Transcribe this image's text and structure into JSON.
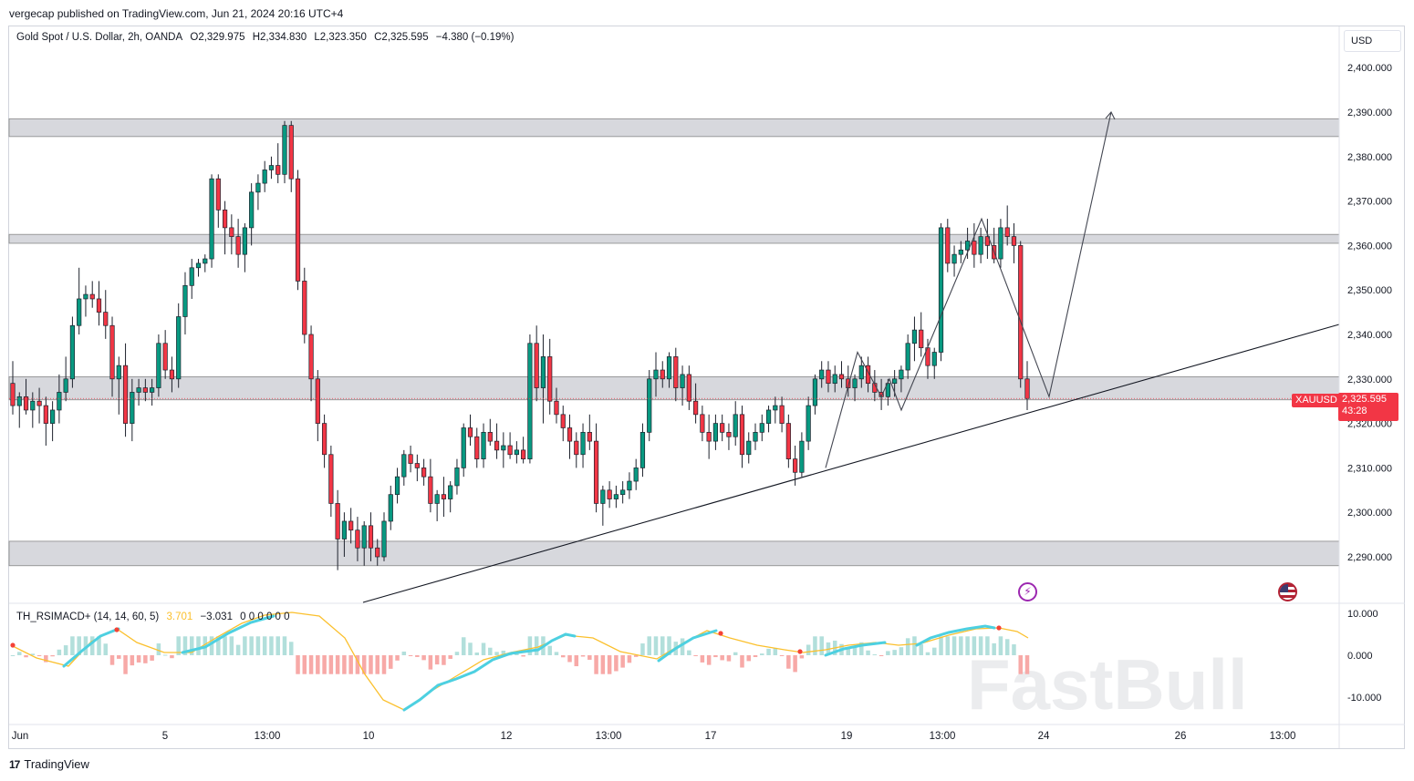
{
  "publisher": "vergecap published on TradingView.com, Jun 21, 2024 20:16 UTC+4",
  "legend": {
    "symbol": "Gold Spot / U.S. Dollar, 2h, OANDA",
    "open": "O2,329.975",
    "high": "H2,334.830",
    "low": "L2,323.350",
    "close": "C2,325.595",
    "change": "−4.380 (−0.19%)"
  },
  "currency": "USD",
  "price_tag": {
    "ticker": "XAUUSD",
    "price": "2,325.595",
    "countdown": "43:28"
  },
  "indicator_legend": {
    "name": "TH_RSIMACD+ (14, 14, 60, 5)",
    "v1": "3.701",
    "v2": "−3.031",
    "rest": "0 0 0 0 0 0"
  },
  "watermark": "FastBull",
  "footer": "TradingView",
  "colors": {
    "up": "#089981",
    "down": "#f23645",
    "zone": "#c9cbd1",
    "macd_line": "#4dd0e1",
    "signal_line": "#fbc02d"
  },
  "icons": [
    "flash-icon",
    "us-flag-icon",
    "tradingview-logo-icon"
  ],
  "chart_data": {
    "type": "candlestick",
    "title": "Gold Spot / U.S. Dollar, 2h, OANDA",
    "yaxis": {
      "ticks": [
        2290,
        2300,
        2310,
        2320,
        2330,
        2340,
        2350,
        2360,
        2370,
        2380,
        2390,
        2400
      ],
      "tick_labels": [
        "2,290.000",
        "2,300.000",
        "2,310.000",
        "2,320.000",
        "2,330.000",
        "2,340.000",
        "2,350.000",
        "2,360.000",
        "2,370.000",
        "2,380.000",
        "2,390.000",
        "2,400.000"
      ],
      "range": [
        2281.5,
        2412
      ]
    },
    "xaxis": {
      "tick_labels": [
        "Jun",
        "5",
        "13:00",
        "10",
        "12",
        "13:00",
        "17",
        "19",
        "13:00",
        "24",
        "26",
        "13:00"
      ]
    },
    "zones": [
      {
        "low": 2384.5,
        "high": 2388.5
      },
      {
        "low": 2360.5,
        "high": 2362.5
      },
      {
        "low": 2325.3,
        "high": 2330.5
      },
      {
        "low": 2288.0,
        "high": 2293.5
      }
    ],
    "candles": [
      [
        2329,
        2334,
        2322,
        2324
      ],
      [
        2324,
        2327,
        2319,
        2326
      ],
      [
        2326,
        2330,
        2322,
        2323
      ],
      [
        2323,
        2327,
        2319,
        2325
      ],
      [
        2325,
        2328,
        2320,
        2324
      ],
      [
        2324,
        2326,
        2315,
        2320
      ],
      [
        2320,
        2325,
        2316,
        2323
      ],
      [
        2323,
        2331,
        2320,
        2327
      ],
      [
        2327,
        2335,
        2325,
        2330
      ],
      [
        2330,
        2344,
        2328,
        2342
      ],
      [
        2342,
        2355,
        2340,
        2348
      ],
      [
        2348,
        2351,
        2344,
        2349
      ],
      [
        2349,
        2352,
        2346,
        2348
      ],
      [
        2348,
        2352,
        2342,
        2345
      ],
      [
        2345,
        2350,
        2339,
        2342
      ],
      [
        2342,
        2344,
        2326,
        2330
      ],
      [
        2330,
        2335,
        2322,
        2333
      ],
      [
        2333,
        2338,
        2317,
        2320
      ],
      [
        2320,
        2330,
        2316,
        2327
      ],
      [
        2327,
        2330,
        2324,
        2328
      ],
      [
        2328,
        2330,
        2325,
        2327
      ],
      [
        2327,
        2330,
        2324,
        2328
      ],
      [
        2328,
        2340,
        2326,
        2338
      ],
      [
        2338,
        2341,
        2330,
        2332
      ],
      [
        2332,
        2335,
        2327,
        2330
      ],
      [
        2330,
        2347,
        2328,
        2344
      ],
      [
        2344,
        2354,
        2340,
        2351
      ],
      [
        2351,
        2357,
        2348,
        2355
      ],
      [
        2355,
        2357,
        2353,
        2356
      ],
      [
        2356,
        2358,
        2354,
        2357
      ],
      [
        2357,
        2376,
        2355,
        2375
      ],
      [
        2375,
        2376,
        2364,
        2368
      ],
      [
        2368,
        2370,
        2358,
        2364
      ],
      [
        2364,
        2367,
        2358,
        2362
      ],
      [
        2362,
        2366,
        2355,
        2358
      ],
      [
        2358,
        2365,
        2354,
        2364
      ],
      [
        2364,
        2374,
        2360,
        2372
      ],
      [
        2372,
        2376,
        2368,
        2374
      ],
      [
        2374,
        2379,
        2372,
        2377
      ],
      [
        2377,
        2380,
        2375,
        2378
      ],
      [
        2378,
        2383,
        2374,
        2376
      ],
      [
        2376,
        2388,
        2374,
        2387
      ],
      [
        2387,
        2388,
        2372,
        2375
      ],
      [
        2375,
        2377,
        2350,
        2352
      ],
      [
        2352,
        2355,
        2338,
        2340
      ],
      [
        2340,
        2342,
        2325,
        2330
      ],
      [
        2330,
        2332,
        2316,
        2320
      ],
      [
        2320,
        2322,
        2310,
        2313
      ],
      [
        2313,
        2315,
        2299,
        2302
      ],
      [
        2302,
        2305,
        2287,
        2294
      ],
      [
        2294,
        2300,
        2290,
        2298
      ],
      [
        2298,
        2301,
        2293,
        2296
      ],
      [
        2296,
        2299,
        2289,
        2292
      ],
      [
        2292,
        2298,
        2288,
        2297
      ],
      [
        2297,
        2300,
        2289,
        2292
      ],
      [
        2292,
        2294,
        2288,
        2290
      ],
      [
        2290,
        2300,
        2289,
        2298
      ],
      [
        2298,
        2306,
        2296,
        2304
      ],
      [
        2304,
        2310,
        2302,
        2308
      ],
      [
        2308,
        2314,
        2306,
        2313
      ],
      [
        2313,
        2315,
        2309,
        2311
      ],
      [
        2311,
        2313,
        2307,
        2310
      ],
      [
        2310,
        2312,
        2306,
        2308
      ],
      [
        2308,
        2312,
        2300,
        2302
      ],
      [
        2302,
        2305,
        2298,
        2304
      ],
      [
        2304,
        2308,
        2299,
        2303
      ],
      [
        2303,
        2307,
        2300,
        2306
      ],
      [
        2306,
        2312,
        2304,
        2310
      ],
      [
        2310,
        2320,
        2308,
        2319
      ],
      [
        2319,
        2322,
        2315,
        2317
      ],
      [
        2317,
        2319,
        2310,
        2312
      ],
      [
        2312,
        2320,
        2310,
        2318
      ],
      [
        2318,
        2321,
        2315,
        2316
      ],
      [
        2316,
        2320,
        2312,
        2314
      ],
      [
        2314,
        2318,
        2310,
        2315
      ],
      [
        2315,
        2318,
        2312,
        2313
      ],
      [
        2313,
        2316,
        2311,
        2314
      ],
      [
        2314,
        2317,
        2311,
        2312
      ],
      [
        2312,
        2340,
        2311,
        2338
      ],
      [
        2338,
        2342,
        2325,
        2328
      ],
      [
        2328,
        2340,
        2320,
        2335
      ],
      [
        2335,
        2339,
        2322,
        2325
      ],
      [
        2325,
        2328,
        2320,
        2322
      ],
      [
        2322,
        2324,
        2316,
        2319
      ],
      [
        2319,
        2322,
        2312,
        2316
      ],
      [
        2316,
        2318,
        2310,
        2313
      ],
      [
        2313,
        2320,
        2310,
        2318
      ],
      [
        2318,
        2322,
        2314,
        2316
      ],
      [
        2316,
        2320,
        2300,
        2302
      ],
      [
        2302,
        2306,
        2297,
        2305
      ],
      [
        2305,
        2307,
        2301,
        2303
      ],
      [
        2303,
        2306,
        2301,
        2304
      ],
      [
        2304,
        2307,
        2302,
        2305
      ],
      [
        2305,
        2309,
        2303,
        2307
      ],
      [
        2307,
        2312,
        2305,
        2310
      ],
      [
        2310,
        2320,
        2308,
        2318
      ],
      [
        2318,
        2332,
        2316,
        2330
      ],
      [
        2330,
        2336,
        2326,
        2332
      ],
      [
        2332,
        2334,
        2328,
        2330
      ],
      [
        2330,
        2336,
        2328,
        2335
      ],
      [
        2335,
        2337,
        2325,
        2328
      ],
      [
        2328,
        2333,
        2324,
        2331
      ],
      [
        2331,
        2333,
        2323,
        2325
      ],
      [
        2325,
        2329,
        2320,
        2322
      ],
      [
        2322,
        2324,
        2316,
        2318
      ],
      [
        2318,
        2322,
        2312,
        2316
      ],
      [
        2316,
        2322,
        2314,
        2320
      ],
      [
        2320,
        2322,
        2316,
        2318
      ],
      [
        2318,
        2320,
        2314,
        2317
      ],
      [
        2317,
        2325,
        2315,
        2322
      ],
      [
        2322,
        2324,
        2310,
        2313
      ],
      [
        2313,
        2318,
        2311,
        2316
      ],
      [
        2316,
        2320,
        2314,
        2318
      ],
      [
        2318,
        2322,
        2316,
        2320
      ],
      [
        2320,
        2324,
        2318,
        2323
      ],
      [
        2323,
        2326,
        2320,
        2324
      ],
      [
        2324,
        2326,
        2318,
        2320
      ],
      [
        2320,
        2322,
        2310,
        2312
      ],
      [
        2312,
        2315,
        2306,
        2309
      ],
      [
        2309,
        2318,
        2308,
        2316
      ],
      [
        2316,
        2326,
        2314,
        2324
      ],
      [
        2324,
        2331,
        2322,
        2330
      ],
      [
        2330,
        2334,
        2328,
        2332
      ],
      [
        2332,
        2334,
        2327,
        2329
      ],
      [
        2329,
        2333,
        2327,
        2331
      ],
      [
        2331,
        2334,
        2328,
        2330
      ],
      [
        2330,
        2333,
        2326,
        2328
      ],
      [
        2328,
        2331,
        2325,
        2330
      ],
      [
        2330,
        2335,
        2328,
        2333
      ],
      [
        2333,
        2335,
        2327,
        2329
      ],
      [
        2329,
        2332,
        2325,
        2327
      ],
      [
        2327,
        2330,
        2323,
        2326
      ],
      [
        2326,
        2330,
        2324,
        2329
      ],
      [
        2329,
        2332,
        2326,
        2330
      ],
      [
        2330,
        2333,
        2327,
        2332
      ],
      [
        2332,
        2340,
        2330,
        2338
      ],
      [
        2338,
        2344,
        2334,
        2341
      ],
      [
        2341,
        2345,
        2335,
        2337
      ],
      [
        2337,
        2339,
        2330,
        2333
      ],
      [
        2333,
        2337,
        2330,
        2336
      ],
      [
        2336,
        2365,
        2334,
        2364
      ],
      [
        2364,
        2366,
        2354,
        2356
      ],
      [
        2356,
        2360,
        2353,
        2358
      ],
      [
        2358,
        2361,
        2356,
        2359
      ],
      [
        2359,
        2364,
        2357,
        2361
      ],
      [
        2361,
        2365,
        2355,
        2358
      ],
      [
        2358,
        2364,
        2356,
        2362
      ],
      [
        2362,
        2366,
        2357,
        2360
      ],
      [
        2360,
        2364,
        2356,
        2357
      ],
      [
        2357,
        2366,
        2355,
        2364
      ],
      [
        2364,
        2369,
        2360,
        2362
      ],
      [
        2362,
        2365,
        2356,
        2360
      ],
      [
        2360,
        2361,
        2328,
        2330
      ],
      [
        2330,
        2334,
        2323,
        2325.6
      ]
    ],
    "drawings": {
      "trendline": [
        [
          0,
          2272
        ],
        [
          1,
          2342
        ]
      ],
      "path": [
        "2310",
        "2336",
        "2326",
        "2330",
        "2323",
        "2366",
        "2326",
        "2390"
      ]
    },
    "indicator": {
      "name": "TH_RSIMACD+",
      "ticks": [
        -10,
        0,
        10
      ],
      "tick_labels": [
        "-10.000",
        "0.000",
        "10.000"
      ],
      "range": [
        -14,
        13
      ]
    }
  }
}
